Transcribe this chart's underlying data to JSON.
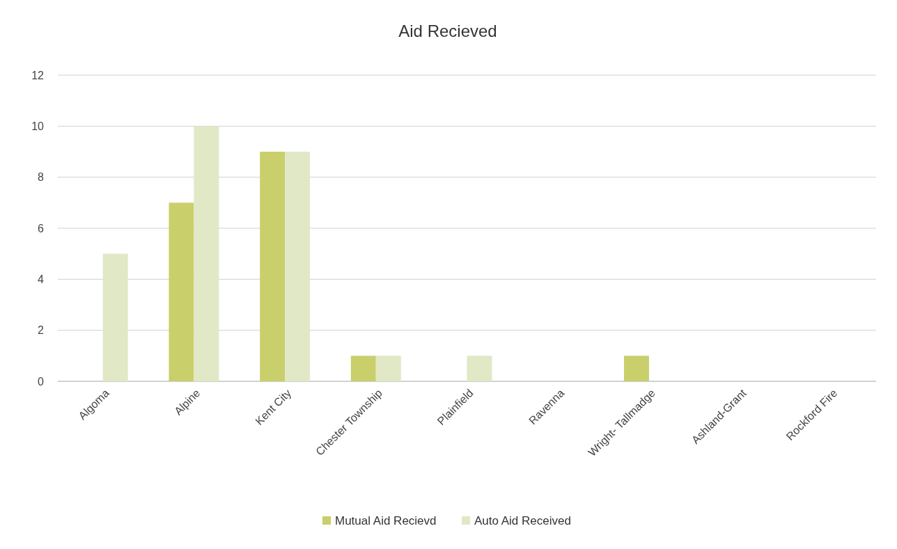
{
  "chart_data": {
    "type": "bar",
    "title": "Aid Recieved",
    "categories": [
      "Algoma",
      "Alpine",
      "Kent City",
      "Chester Township",
      "Plainfield",
      "Ravenna",
      "Wright- Tallmadge",
      "Ashland-Grant",
      "Rockford Fire"
    ],
    "series": [
      {
        "name": "Mutual Aid Recievd",
        "color": "#c9cf6b",
        "values": [
          0,
          7,
          9,
          1,
          0,
          0,
          1,
          0,
          0
        ]
      },
      {
        "name": "Auto Aid Received",
        "color": "#e0e8c6",
        "values": [
          5,
          10,
          9,
          1,
          1,
          0,
          0,
          0,
          0
        ]
      }
    ],
    "ylim": [
      0,
      12
    ],
    "yticks": [
      0,
      2,
      4,
      6,
      8,
      10,
      12
    ],
    "grid": "y",
    "legend": "bottom"
  }
}
